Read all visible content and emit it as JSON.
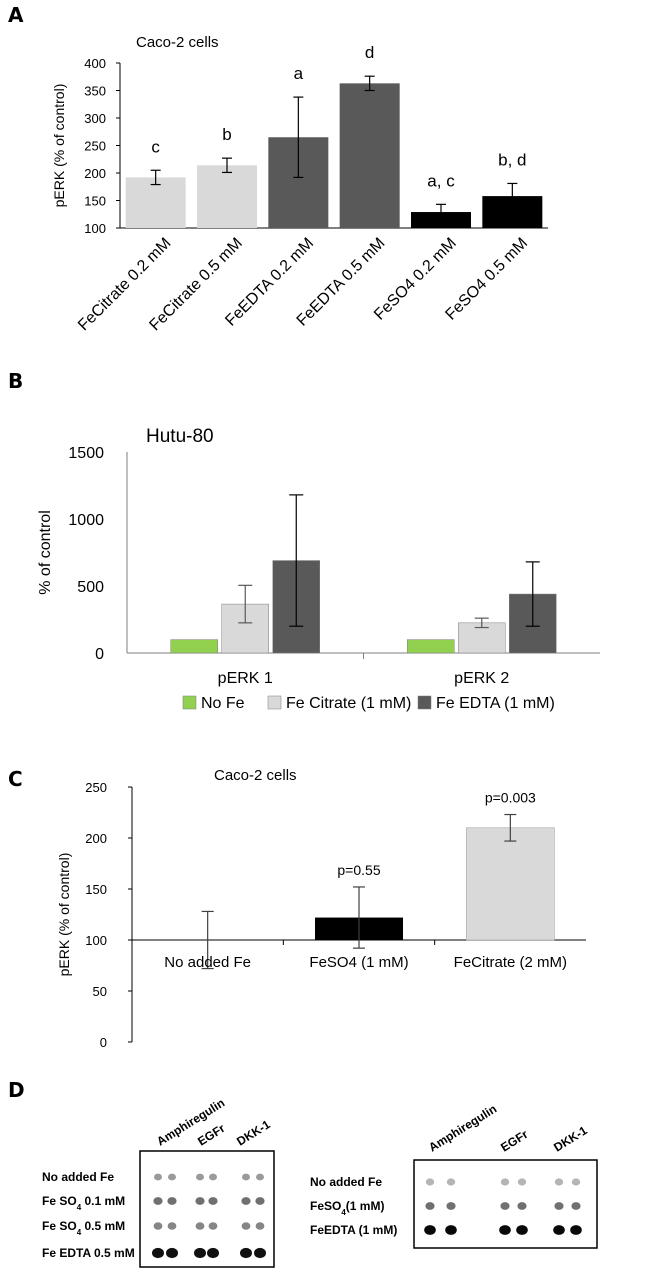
{
  "panel_labels": {
    "a": "A",
    "b": "B",
    "c": "C",
    "d": "D"
  },
  "colors": {
    "light_gray": "#d9d9d9",
    "dark_gray": "#595959",
    "black": "#000000",
    "green": "#92d050",
    "axis": "#7f7f7f",
    "blot_frame": "#000000"
  },
  "chart_data": [
    {
      "panel": "A",
      "type": "bar",
      "title": "Caco-2 cells",
      "ylabel": "pERK  (% of control)",
      "xlabel": "",
      "ylim": [
        100,
        400
      ],
      "yticks": [
        "100",
        "150",
        "200",
        "250",
        "300",
        "350",
        "400"
      ],
      "categories": [
        "FeCitrate 0.2 mM",
        "FeCitrate 0.5 mM",
        "FeEDTA 0.2 mM",
        "FeEDTA 0.5 mM",
        "FeSO4 0.2 mM",
        "FeSO4 0.5 mM"
      ],
      "values": [
        192,
        214,
        265,
        363,
        129,
        158
      ],
      "errors": [
        13,
        13,
        73,
        13,
        14,
        23
      ],
      "bar_colors": [
        "#d9d9d9",
        "#d9d9d9",
        "#595959",
        "#595959",
        "#000000",
        "#000000"
      ],
      "annotations": [
        "c",
        "b",
        "a",
        "d",
        "a, c",
        "b, d"
      ]
    },
    {
      "panel": "B",
      "type": "bar",
      "title": "Hutu-80",
      "ylabel": "% of control",
      "xlabel": "",
      "ylim": [
        0,
        1500
      ],
      "yticks": [
        "0",
        "500",
        "1000",
        "1500"
      ],
      "categories": [
        "pERK 1",
        "pERK 2"
      ],
      "series": [
        {
          "name": "No Fe",
          "values": [
            100,
            100
          ],
          "errors": [
            0,
            0
          ],
          "color": "#92d050"
        },
        {
          "name": "Fe Citrate (1 mM)",
          "values": [
            365,
            225
          ],
          "errors": [
            140,
            35
          ],
          "color": "#d9d9d9"
        },
        {
          "name": "Fe EDTA (1 mM)",
          "values": [
            690,
            440
          ],
          "errors": [
            490,
            240
          ],
          "color": "#595959"
        }
      ],
      "legend": "bottom"
    },
    {
      "panel": "C",
      "type": "bar",
      "title": "Caco-2 cells",
      "ylabel": "pERK (% of control)",
      "xlabel": "",
      "ylim": [
        0,
        250
      ],
      "yticks": [
        "0",
        "50",
        "100",
        "150",
        "200",
        "250"
      ],
      "baseline": 100,
      "categories": [
        "No added Fe",
        "FeSO4 (1 mM)",
        "FeCitrate (2 mM)"
      ],
      "values": [
        100,
        122,
        210
      ],
      "errors": [
        28,
        30,
        13
      ],
      "bar_colors": [
        "#ffffff",
        "#000000",
        "#d9d9d9"
      ],
      "annotations": [
        "",
        "p=0.55",
        "p=0.003"
      ]
    }
  ],
  "blots": {
    "left": {
      "columns": [
        "Amphiregulin",
        "EGFr",
        "DKK-1"
      ],
      "rows": [
        "No added Fe",
        "Fe SO",
        "Fe SO",
        "Fe EDTA 0.5 mM"
      ],
      "row_subs": [
        "",
        "4",
        "4",
        ""
      ],
      "row_tails": [
        "",
        " 0.1 mM",
        " 0.5 mM",
        ""
      ]
    },
    "right": {
      "columns": [
        "Amphiregulin",
        "EGFr",
        "DKK-1"
      ],
      "rows": [
        "No added Fe",
        "FeSO",
        "FeEDTA (1 mM)"
      ],
      "row_subs": [
        "",
        "4",
        ""
      ],
      "row_tails": [
        "",
        "(1 mM)",
        ""
      ]
    }
  }
}
